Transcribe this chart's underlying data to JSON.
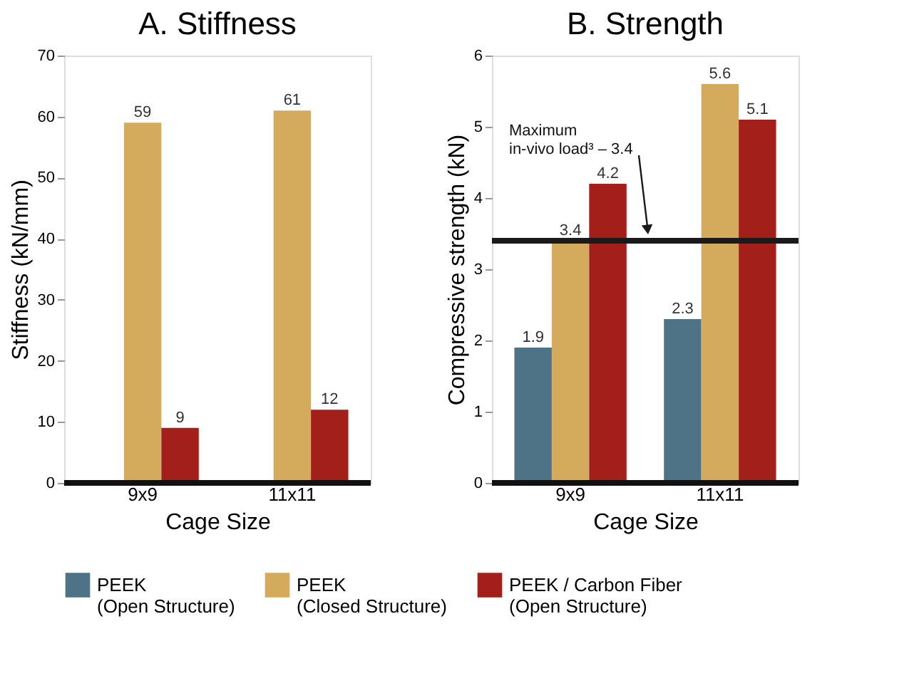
{
  "chart_data": [
    {
      "type": "bar",
      "title": "A. Stiffness",
      "xlabel": "Cage Size",
      "ylabel": "Stiffness (kN/mm)",
      "categories": [
        "9x9",
        "11x11"
      ],
      "series": [
        {
          "color": "#4e7387",
          "values": [
            null,
            null
          ]
        },
        {
          "color": "#d4aa5c",
          "values": [
            59,
            61
          ]
        },
        {
          "color": "#a31f1a",
          "values": [
            9,
            12
          ]
        }
      ],
      "ylim": [
        0,
        70
      ],
      "yticks": [
        0,
        10,
        20,
        30,
        40,
        50,
        60,
        70
      ],
      "data_labels": true,
      "grid": false
    },
    {
      "type": "bar",
      "title": "B. Strength",
      "xlabel": "Cage Size",
      "ylabel": "Compressive strength (kN)",
      "categories": [
        "9x9",
        "11x11"
      ],
      "series": [
        {
          "name": "PEEK (Open Structure)",
          "color": "#4e7387",
          "values": [
            1.9,
            2.3
          ]
        },
        {
          "name": "PEEK (Closed Structure)",
          "color": "#d4aa5c",
          "values": [
            3.4,
            5.6
          ]
        },
        {
          "name": "PEEK / Carbon Fiber (Open Structure)",
          "color": "#a31f1a",
          "values": [
            4.2,
            5.1
          ]
        }
      ],
      "ylim": [
        0,
        6
      ],
      "yticks": [
        0,
        1,
        2,
        3,
        4,
        5,
        6
      ],
      "data_labels": true,
      "grid": false,
      "legend": "bottom",
      "ref_lines": [
        {
          "axis": "y",
          "value": 3.4,
          "label": "Maximum in-vivo load³ – 3.4",
          "color": "#1a1a1a"
        }
      ]
    }
  ]
}
